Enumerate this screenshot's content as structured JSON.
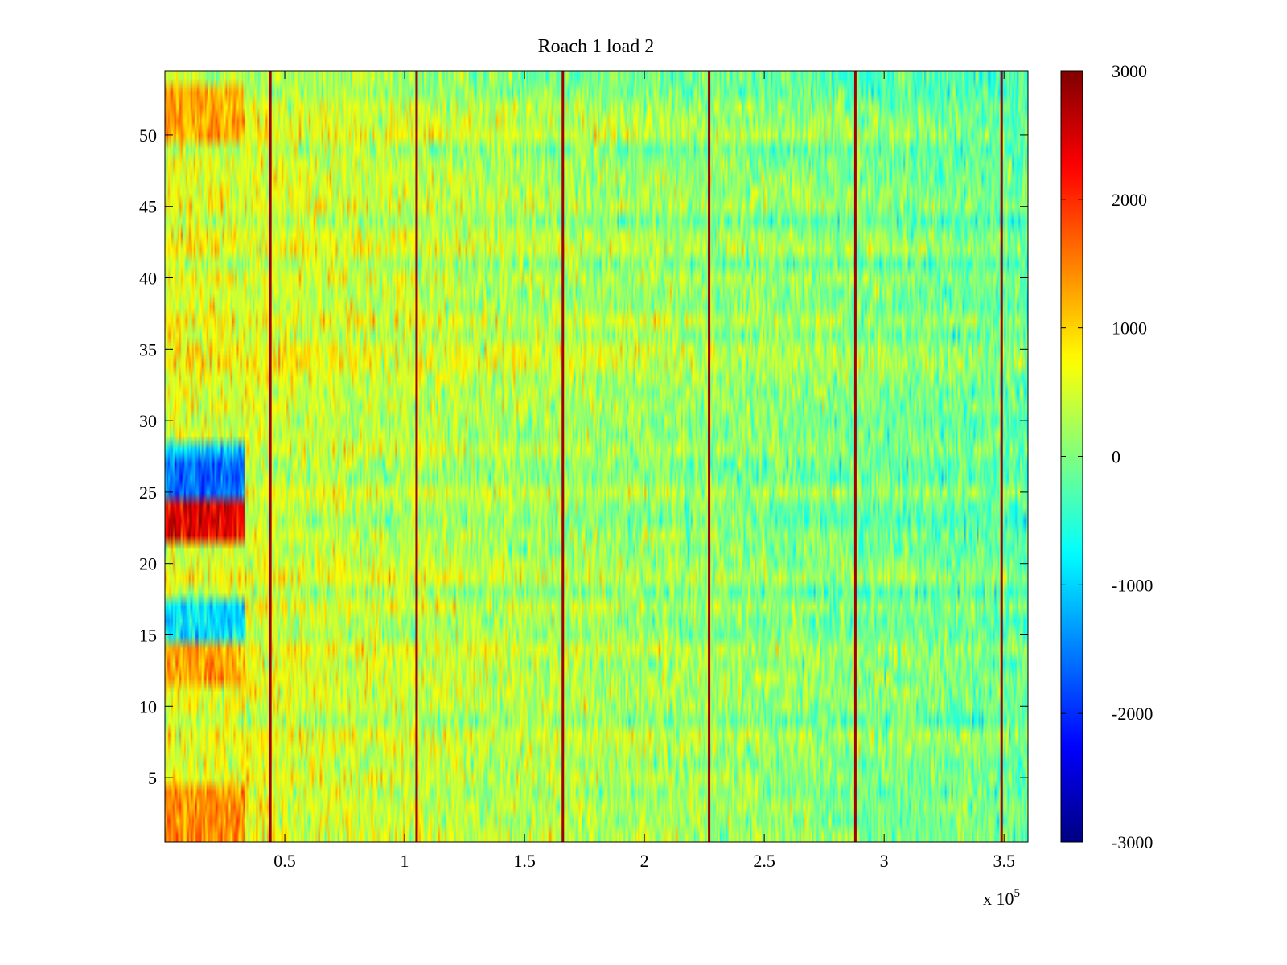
{
  "chart_data": {
    "type": "heatmap",
    "title": "Roach 1 load 2",
    "xlabel": "",
    "ylabel": "",
    "x_exponent_label": "x 10",
    "x_exponent_power": "5",
    "xlim": [
      0,
      360000
    ],
    "ylim": [
      0.5,
      54.5
    ],
    "rows": 54,
    "x_ticks": [
      0.5,
      1,
      1.5,
      2,
      2.5,
      3,
      3.5
    ],
    "x_tick_labels": [
      "0.5",
      "1",
      "1.5",
      "2",
      "2.5",
      "3",
      "3.5"
    ],
    "y_ticks": [
      5,
      10,
      15,
      20,
      25,
      30,
      35,
      40,
      45,
      50
    ],
    "y_tick_labels": [
      "5",
      "10",
      "15",
      "20",
      "25",
      "30",
      "35",
      "40",
      "45",
      "50"
    ],
    "colormap": "jet",
    "clim": [
      -3000,
      3000
    ],
    "colorbar_ticks": [
      3000,
      2000,
      1000,
      0,
      -1000,
      -2000,
      -3000
    ],
    "colorbar_tick_labels": [
      "3000",
      "2000",
      "1000",
      "0",
      "-1000",
      "-2000",
      "-3000"
    ],
    "background_mean_start": 600,
    "background_mean_end": -150,
    "vertical_lines": [
      {
        "x": 44000,
        "value": 2800
      },
      {
        "x": 105000,
        "value": 2800
      },
      {
        "x": 166000,
        "value": 2800
      },
      {
        "x": 227000,
        "value": 2800
      },
      {
        "x": 288000,
        "value": 2800
      },
      {
        "x": 349000,
        "value": 2800
      }
    ],
    "early_segment": {
      "x_start": 0,
      "x_end": 33000,
      "row_values": [
        {
          "rows": [
            1,
            2,
            3,
            4
          ],
          "value": 1400
        },
        {
          "rows": [
            12,
            13,
            14
          ],
          "value": 1300
        },
        {
          "rows": [
            15,
            16,
            17
          ],
          "value": -900
        },
        {
          "rows": [
            22,
            23,
            24
          ],
          "value": 2400
        },
        {
          "rows": [
            25,
            26,
            27
          ],
          "value": -1600
        },
        {
          "rows": [
            28
          ],
          "value": -900
        },
        {
          "rows": [
            50,
            51,
            52,
            53
          ],
          "value": 1300
        }
      ]
    }
  }
}
